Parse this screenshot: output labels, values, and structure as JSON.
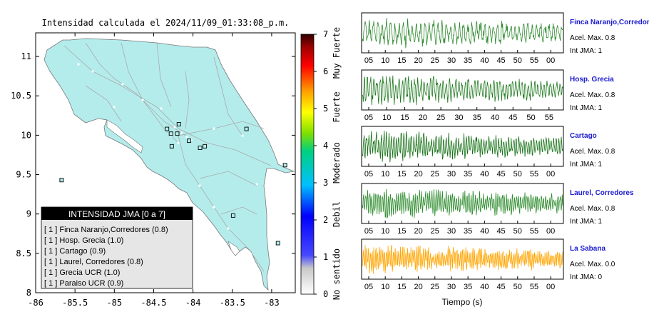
{
  "map": {
    "title": "Intensidad calculada el 2024/11/09_01:33:08_p.m.",
    "lon_ticks": [
      "-86",
      "-85.5",
      "-85",
      "-84.5",
      "-84",
      "-83.5",
      "-83"
    ],
    "lat_ticks": [
      "11",
      "10.5",
      "10",
      "9.5",
      "9",
      "8.5",
      "8"
    ],
    "xlim": [
      -86,
      -82.7
    ],
    "ylim": [
      8,
      11.3
    ],
    "land_color": "#b4ecec",
    "stations": [
      {
        "lon": -84.33,
        "lat": 10.08
      },
      {
        "lon": -84.18,
        "lat": 10.14
      },
      {
        "lon": -84.28,
        "lat": 10.02
      },
      {
        "lon": -84.2,
        "lat": 10.02
      },
      {
        "lon": -84.05,
        "lat": 9.93
      },
      {
        "lon": -83.85,
        "lat": 9.86
      },
      {
        "lon": -83.91,
        "lat": 9.84
      },
      {
        "lon": -84.27,
        "lat": 9.86
      },
      {
        "lon": -83.32,
        "lat": 10.08
      },
      {
        "lon": -85.67,
        "lat": 9.43
      },
      {
        "lon": -82.83,
        "lat": 9.62
      },
      {
        "lon": -83.49,
        "lat": 8.98
      },
      {
        "lon": -82.92,
        "lat": 8.63
      }
    ]
  },
  "colorbar": {
    "ticks": [
      "0",
      "1",
      "2",
      "3",
      "4",
      "5",
      "6",
      "7"
    ],
    "labels": [
      "No sentido",
      "Debil",
      "Moderado",
      "Fuerte",
      "Muy Fuerte"
    ]
  },
  "legend": {
    "title": "INTENSIDAD JMA [0 a 7]",
    "items": [
      "[ 1 ]  Finca Naranjo,Corredores (0.8)",
      "[ 1 ]  Hosp. Grecia (1.0)",
      "[ 1 ]  Cartago (0.9)",
      "[ 1 ]  Laurel, Corredores (0.8)",
      "[ 1 ]  Grecia UCR (1.0)",
      "[ 1 ]  Paraiso UCR (0.9)"
    ]
  },
  "waveforms": {
    "xlabel": "Tiempo (s)",
    "stations": [
      {
        "name": "Finca Naranjo,Corredor",
        "accel": "Acel. Max. 0.8",
        "jma": "Int JMA: 1",
        "color": "#2f8a2f",
        "ticks": [
          "05",
          "10",
          "15",
          "20",
          "25",
          "30",
          "35",
          "40",
          "45",
          "50",
          "55",
          "00"
        ]
      },
      {
        "name": "Hosp. Grecia",
        "accel": "Acel. Max. 0.8",
        "jma": "Int JMA: 1",
        "color": "#1f7a1f",
        "ticks": [
          "05",
          "10",
          "15",
          "20",
          "25",
          "30",
          "35",
          "40",
          "45",
          "50",
          "55"
        ]
      },
      {
        "name": "Cartago",
        "accel": "Acel. Max. 0.8",
        "jma": "Int JMA: 1",
        "color": "#137013",
        "ticks": [
          "05",
          "10",
          "15",
          "20",
          "25",
          "30",
          "35",
          "40",
          "45",
          "50",
          "55",
          "00"
        ]
      },
      {
        "name": "Laurel, Corredores",
        "accel": "Acel. Max. 0.8",
        "jma": "Int JMA: 1",
        "color": "#2b8a2b",
        "ticks": [
          "05",
          "10",
          "15",
          "20",
          "25",
          "30",
          "35",
          "40",
          "45",
          "50",
          "55",
          "00"
        ]
      },
      {
        "name": "La Sabana",
        "accel": "Acel. Max. 0.0",
        "jma": "Int JMA: 0",
        "color": "#ffa500",
        "ticks": [
          "05",
          "10",
          "15",
          "20",
          "25",
          "30",
          "35",
          "40",
          "45",
          "50",
          "55",
          "00"
        ]
      }
    ]
  },
  "chart_data": [
    {
      "type": "scatter",
      "title": "Intensidad calculada el 2024/11/09_01:33:08_p.m.",
      "xlim": [
        -86,
        -82.7
      ],
      "ylim": [
        8,
        11.3
      ],
      "series": [
        {
          "name": "stations",
          "values": "see map.stations"
        }
      ]
    },
    {
      "type": "line",
      "xlabel": "Tiempo (s)",
      "series": [
        {
          "name": "Finca Naranjo,Corredor"
        },
        {
          "name": "Hosp. Grecia"
        },
        {
          "name": "Cartago"
        },
        {
          "name": "Laurel, Corredores"
        },
        {
          "name": "La Sabana"
        }
      ]
    }
  ]
}
